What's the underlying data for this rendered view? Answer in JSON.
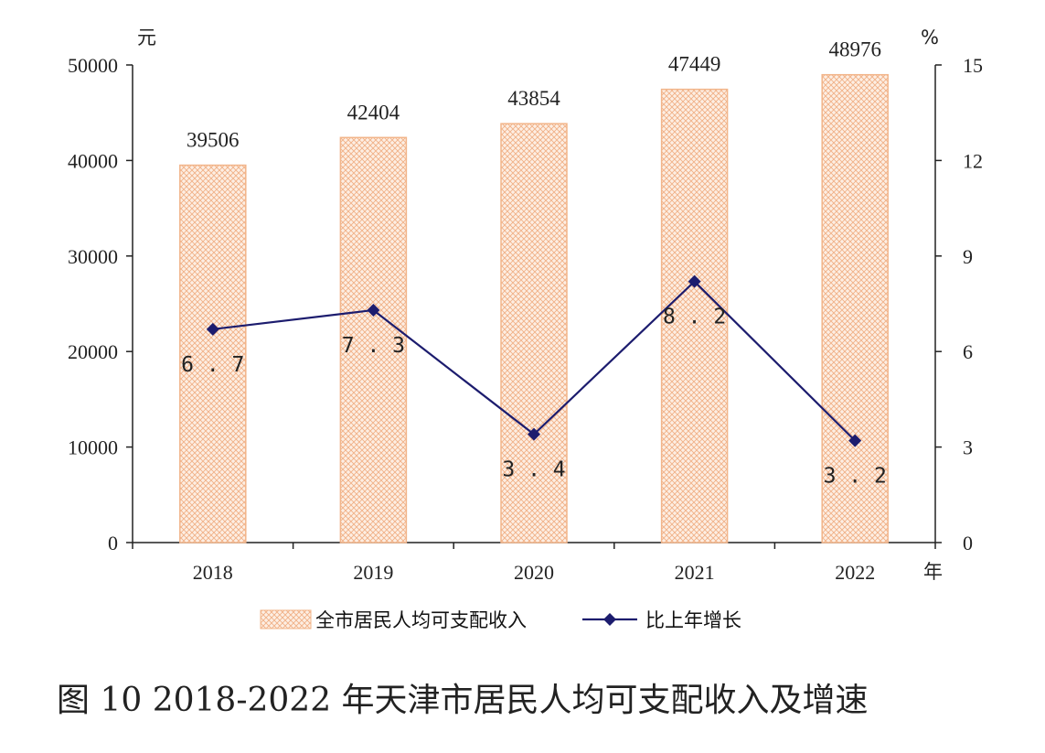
{
  "chart_data": {
    "type": "bar",
    "title": "图 10   2018-2022 年天津市居民人均可支配收入及增速",
    "categories": [
      "2018",
      "2019",
      "2020",
      "2021",
      "2022"
    ],
    "xlabel": "年",
    "ylabel_left": "元",
    "ylabel_right": "%",
    "ylim_left": [
      0,
      50000
    ],
    "ylim_right": [
      0,
      15
    ],
    "yticks_left": [
      "0",
      "10000",
      "20000",
      "30000",
      "40000",
      "50000"
    ],
    "yticks_right": [
      "0",
      "3",
      "6",
      "9",
      "12",
      "15"
    ],
    "grid": false,
    "legend_position": "bottom",
    "series": [
      {
        "name": "全市居民人均可支配收入",
        "type": "bar",
        "axis": "left",
        "color": "#f2b58a",
        "values": [
          39506,
          42404,
          43854,
          47449,
          48976
        ],
        "labels": [
          "39506",
          "42404",
          "43854",
          "47449",
          "48976"
        ]
      },
      {
        "name": "比上年增长",
        "type": "line",
        "axis": "right",
        "color": "#1c1c6e",
        "values": [
          6.7,
          7.3,
          3.4,
          8.2,
          3.2
        ],
        "labels": [
          "6.7",
          "7.3",
          "3.4",
          "8.2",
          "3.2"
        ]
      }
    ]
  }
}
